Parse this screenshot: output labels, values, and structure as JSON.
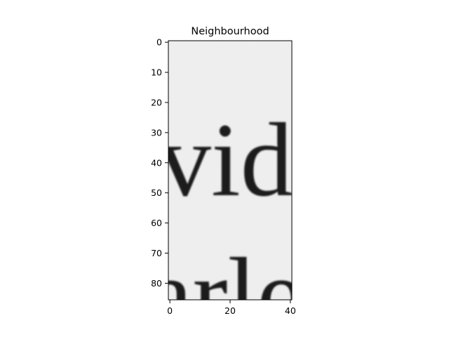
{
  "chart_data": {
    "type": "image",
    "title": "Neighbourhood",
    "xlabel": "",
    "ylabel": "",
    "x_ticks": [
      0,
      20,
      40
    ],
    "y_ticks": [
      0,
      10,
      20,
      30,
      40,
      50,
      60,
      70,
      80
    ],
    "xlim": [
      -0.5,
      40.5
    ],
    "ylim": [
      85.5,
      -0.5
    ],
    "y_inverted": true,
    "colormap": "gray",
    "image_content": {
      "visible_text_top": "vid",
      "visible_text_bottom": "arle"
    },
    "colors": {
      "background": "#f0f0f0",
      "ink": "#1c1c1c",
      "axis": "#000000"
    }
  }
}
